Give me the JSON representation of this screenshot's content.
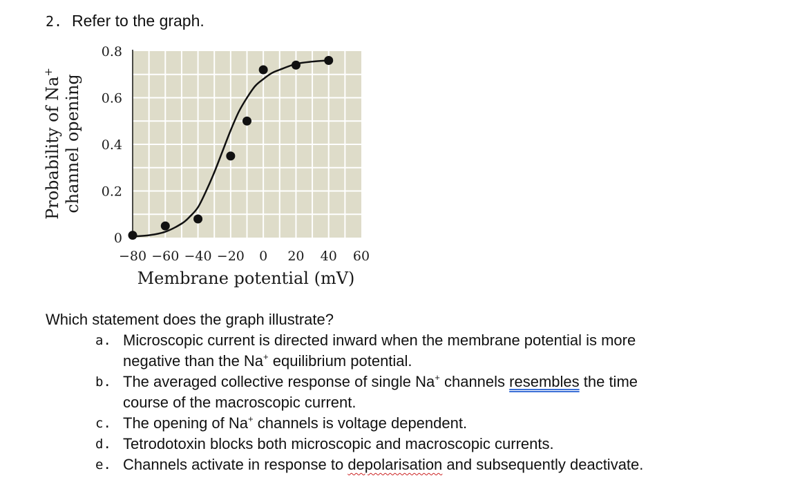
{
  "question_header": {
    "number": "2.",
    "text": "Refer to the graph."
  },
  "chart_data": {
    "type": "scatter",
    "points": {
      "x": [
        -80,
        -60,
        -40,
        -20,
        -10,
        0,
        20,
        40
      ],
      "y": [
        0.01,
        0.05,
        0.08,
        0.35,
        0.5,
        0.72,
        0.74,
        0.76
      ]
    },
    "fit_curve": {
      "x": [
        -80,
        -70,
        -60,
        -50,
        -45,
        -40,
        -35,
        -30,
        -25,
        -20,
        -15,
        -10,
        -5,
        0,
        5,
        10,
        20,
        30,
        40
      ],
      "y": [
        0.005,
        0.01,
        0.025,
        0.06,
        0.09,
        0.13,
        0.2,
        0.28,
        0.37,
        0.46,
        0.54,
        0.6,
        0.65,
        0.68,
        0.705,
        0.72,
        0.745,
        0.755,
        0.76
      ]
    },
    "xlabel": "Membrane potential (mV)",
    "ylabel_line1": "Probability of Na",
    "ylabel_line2": "channel opening",
    "ylabel_superscript": "+",
    "xlim": [
      -80,
      60
    ],
    "ylim": [
      0,
      0.8
    ],
    "xticks": [
      -80,
      -60,
      -40,
      -20,
      0,
      20,
      40,
      60
    ],
    "xtick_labels": [
      "−80",
      "−60",
      "−40",
      "−20",
      "0",
      "20",
      "40",
      "60"
    ],
    "yticks": [
      0,
      0.2,
      0.4,
      0.6,
      0.8
    ],
    "ytick_labels": [
      "0",
      "0.2",
      "0.4",
      "0.6",
      "0.8"
    ],
    "grid": true,
    "colors": {
      "plot_background": "#dedcc9",
      "grid": "#ffffff",
      "markers": "#111111",
      "curve": "#111111"
    }
  },
  "question": "Which statement does the graph illustrate?",
  "options": [
    {
      "letter": "a.",
      "line1": "Microscopic current is directed inward when the membrane potential is more",
      "line2_before": "negative than the Na",
      "sup": "+",
      "line2_after": " equilibrium potential."
    },
    {
      "letter": "b.",
      "line1_before": "The averaged collective response of single Na",
      "sup": "+",
      "line1_mid": " channels ",
      "underlined": "resembles",
      "line1_after": " the time",
      "line2": "course of the macroscopic current."
    },
    {
      "letter": "c.",
      "before": "The opening of Na",
      "sup": "+",
      "after": " channels is voltage dependent."
    },
    {
      "letter": "d.",
      "text": "Tetrodotoxin blocks both microscopic and macroscopic currents."
    },
    {
      "letter": "e.",
      "before": "Channels activate in response to ",
      "underlined": "depolarisation",
      "after": " and subsequently deactivate."
    }
  ]
}
